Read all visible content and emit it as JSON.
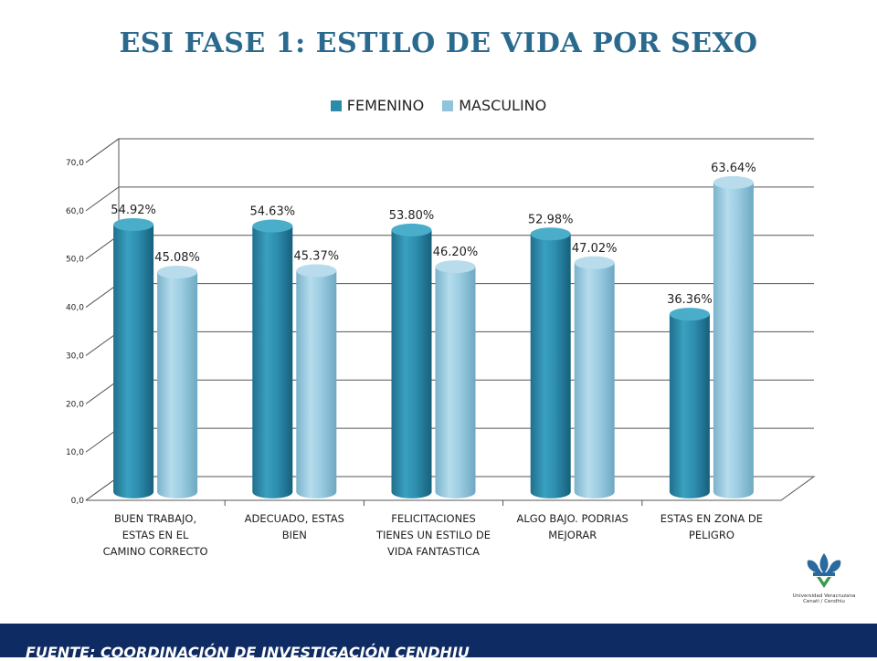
{
  "title": "ESI  FASE 1: ESTILO DE VIDA  POR SEXO",
  "footer": "FUENTE: COORDINACIÓN DE  INVESTIGACIÓN CENDHIU",
  "logo": {
    "line1": "Universidad Veracruzana",
    "line2": "Cenati / Cendhiu"
  },
  "colors": {
    "femenino": "#2b8bab",
    "masculino": "#8fc4db",
    "title": "#2a6a8e",
    "footer_bg": "#0f2b63"
  },
  "chart_data": {
    "type": "bar",
    "ylim": [
      0,
      70
    ],
    "yticks": [
      "0,0",
      "10,0",
      "20,0",
      "30,0",
      "40,0",
      "50,0",
      "60,0",
      "70,0"
    ],
    "grid": true,
    "legend_position": "top",
    "categories": [
      [
        "BUEN TRABAJO,",
        "ESTAS  EN EL",
        "CAMINO CORRECTO"
      ],
      [
        "ADECUADO, ESTAS",
        "BIEN"
      ],
      [
        "FELICITACIONES",
        "TIENES UN ESTILO DE",
        "VIDA FANTASTICA"
      ],
      [
        "ALGO BAJO. PODRIAS",
        "MEJORAR"
      ],
      [
        "ESTAS EN  ZONA  DE",
        "PELIGRO"
      ]
    ],
    "series": [
      {
        "name": "FEMENINO",
        "values": [
          54.92,
          54.63,
          53.8,
          52.98,
          36.36
        ],
        "labels": [
          "54.92%",
          "54.63%",
          "53.80%",
          "52.98%",
          "36.36%"
        ]
      },
      {
        "name": "MASCULINO",
        "values": [
          45.08,
          45.37,
          46.2,
          47.02,
          63.64
        ],
        "labels": [
          "45.08%",
          "45.37%",
          "46.20%",
          "47.02%",
          "63.64%"
        ]
      }
    ]
  }
}
